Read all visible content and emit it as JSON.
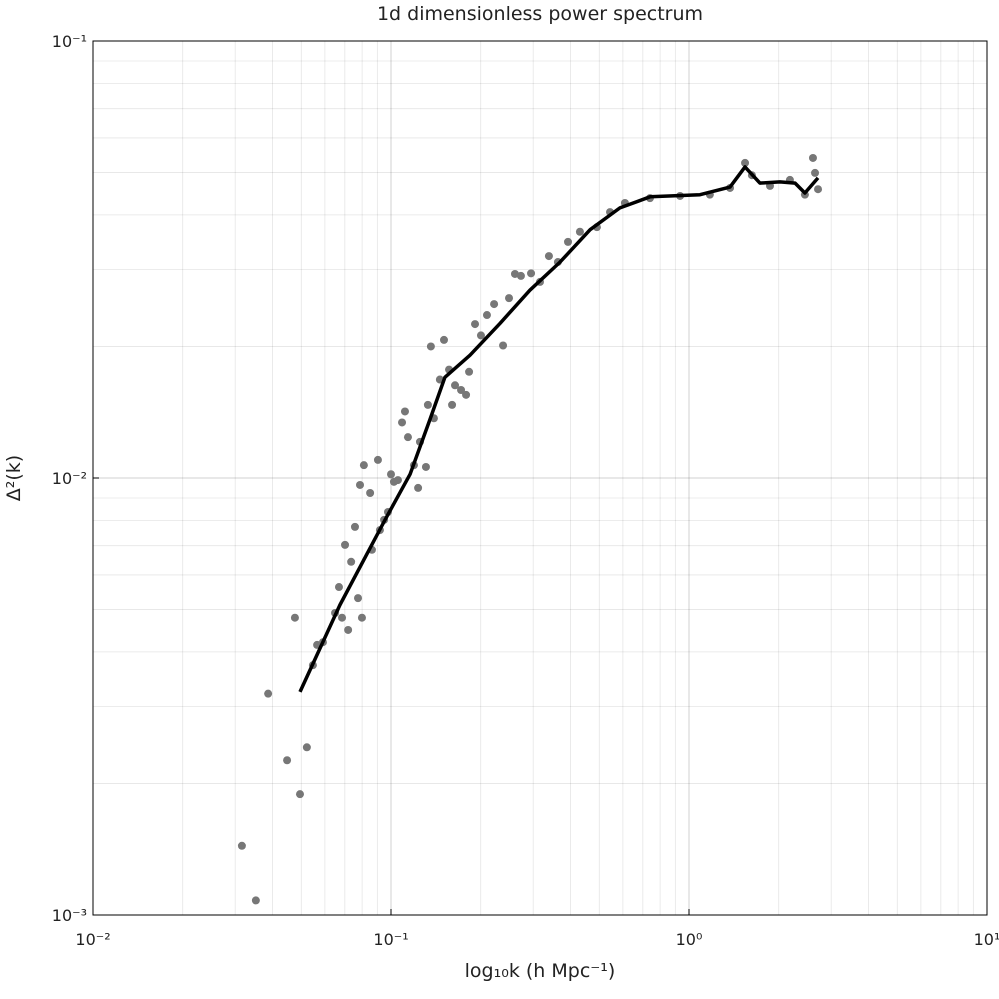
{
  "chart_data": {
    "type": "scatter",
    "title": "1d dimensionless power spectrum",
    "x_label": "log₁₀k (h Mpc⁻¹)",
    "y_label": "Δ²(k)",
    "log_x": true,
    "log_y": true,
    "grid": true,
    "minor_grid": true,
    "xlim": [
      0.01,
      10
    ],
    "ylim": [
      0.001,
      0.1
    ],
    "xticks": [
      {
        "value": 0.01,
        "label": "10⁻²"
      },
      {
        "value": 0.1,
        "label": "10⁻¹"
      },
      {
        "value": 1,
        "label": "10⁰"
      },
      {
        "value": 10,
        "label": "10¹"
      }
    ],
    "yticks": [
      {
        "value": 0.001,
        "label": "10⁻³"
      },
      {
        "value": 0.01,
        "label": "10⁻²"
      },
      {
        "value": 0.1,
        "label": "10⁻¹"
      }
    ],
    "series": [
      {
        "type": "scatter",
        "color": "#777777",
        "x": [
          0.0316,
          0.0352,
          0.0387,
          0.0448,
          0.0476,
          0.0495,
          0.0522,
          0.0547,
          0.0565,
          0.0591,
          0.0649,
          0.0669,
          0.0685,
          0.0701,
          0.0718,
          0.0735,
          0.0757,
          0.0775,
          0.0787,
          0.0799,
          0.0811,
          0.0851,
          0.0863,
          0.0904,
          0.0918,
          0.0948,
          0.0977,
          0.1,
          0.1023,
          0.1055,
          0.1089,
          0.1114,
          0.114,
          0.1194,
          0.1233,
          0.1251,
          0.131,
          0.133,
          0.1361,
          0.1393,
          0.1459,
          0.1506,
          0.1566,
          0.1603,
          0.164,
          0.1718,
          0.1786,
          0.1828,
          0.1914,
          0.2004,
          0.2099,
          0.2218,
          0.2377,
          0.2489,
          0.2606,
          0.2729,
          0.2951,
          0.3162,
          0.3388,
          0.3631,
          0.3926,
          0.4305,
          0.4909,
          0.5432,
          0.6095,
          0.7396,
          0.9333,
          1.175,
          1.373,
          1.542,
          1.626,
          1.87,
          2.181,
          2.449,
          2.606,
          2.648,
          2.71
        ],
        "values": [
          0.00144,
          0.00108,
          0.00321,
          0.00226,
          0.00479,
          0.00189,
          0.00242,
          0.00373,
          0.00415,
          0.00421,
          0.00491,
          0.00563,
          0.00479,
          0.00703,
          0.00449,
          0.00643,
          0.00773,
          0.00531,
          0.00964,
          0.00479,
          0.0107,
          0.00924,
          0.00685,
          0.011,
          0.0076,
          0.00802,
          0.00836,
          0.0102,
          0.0098,
          0.00989,
          0.0134,
          0.0142,
          0.0124,
          0.0107,
          0.00949,
          0.0121,
          0.0106,
          0.0147,
          0.02,
          0.0137,
          0.0168,
          0.0207,
          0.0177,
          0.0147,
          0.0163,
          0.0159,
          0.0155,
          0.0175,
          0.0225,
          0.0212,
          0.0236,
          0.025,
          0.0201,
          0.0258,
          0.0293,
          0.029,
          0.0294,
          0.0281,
          0.0322,
          0.0312,
          0.0347,
          0.0366,
          0.0375,
          0.0406,
          0.0426,
          0.0437,
          0.0442,
          0.0445,
          0.0461,
          0.0526,
          0.0493,
          0.0466,
          0.0481,
          0.0445,
          0.054,
          0.0499,
          0.0458
        ]
      },
      {
        "type": "line",
        "color": "#000000",
        "x": [
          0.0495,
          0.0674,
          0.0955,
          0.1159,
          0.1351,
          0.1517,
          0.1841,
          0.2323,
          0.2924,
          0.369,
          0.4656,
          0.5861,
          0.7396,
          1.089,
          1.373,
          1.542,
          1.73,
          2.018,
          2.27,
          2.449,
          2.71
        ],
        "values": [
          0.00324,
          0.00512,
          0.00802,
          0.0102,
          0.0136,
          0.017,
          0.0191,
          0.0226,
          0.0269,
          0.0312,
          0.037,
          0.0415,
          0.044,
          0.0445,
          0.0463,
          0.0515,
          0.0473,
          0.0476,
          0.0473,
          0.0449,
          0.0486
        ]
      }
    ]
  }
}
